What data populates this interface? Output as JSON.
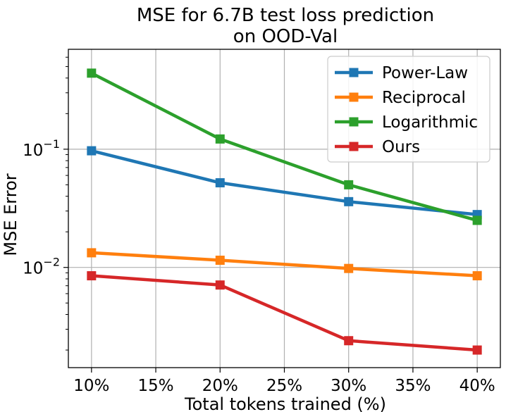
{
  "chart_data": {
    "type": "line",
    "title": [
      "MSE for 6.7B test loss prediction",
      "on OOD-Val"
    ],
    "xlabel": "Total tokens trained (%)",
    "ylabel": "MSE Error",
    "x": [
      10,
      20,
      30,
      40
    ],
    "xlim": [
      8.2,
      41.8
    ],
    "x_ticks": [
      10,
      15,
      20,
      25,
      30,
      35,
      40
    ],
    "x_tick_labels": [
      "10%",
      "15%",
      "20%",
      "25%",
      "30%",
      "35%",
      "40%"
    ],
    "y_scale": "log",
    "ylim": [
      0.00142,
      0.7
    ],
    "y_major_ticks": [
      0.01,
      0.1
    ],
    "y_tick_labels": [
      {
        "base": "10",
        "exp": "−2"
      },
      {
        "base": "10",
        "exp": "−1"
      }
    ],
    "grid": true,
    "legend_position": "upper right",
    "series": [
      {
        "name": "Power-Law",
        "color": "#1f77b4",
        "values": [
          0.097,
          0.052,
          0.036,
          0.028
        ]
      },
      {
        "name": "Reciprocal",
        "color": "#ff7f0e",
        "values": [
          0.0133,
          0.0115,
          0.0098,
          0.0085
        ]
      },
      {
        "name": "Logarithmic",
        "color": "#2ca02c",
        "values": [
          0.44,
          0.122,
          0.05,
          0.025
        ]
      },
      {
        "name": "Ours",
        "color": "#d62728",
        "values": [
          0.0085,
          0.0071,
          0.0024,
          0.002
        ]
      }
    ]
  }
}
